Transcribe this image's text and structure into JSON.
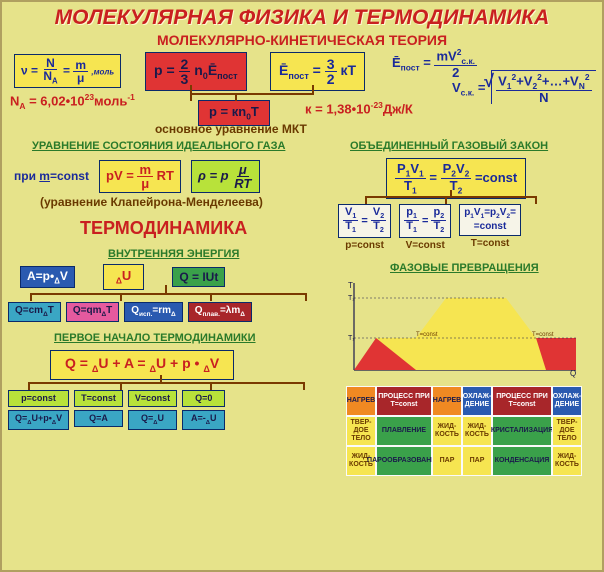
{
  "colors": {
    "bg": "#e6e38a",
    "red": "#c92020",
    "blue": "#1a2a9a",
    "brown": "#6a3a00",
    "green_h": "#2a7a2a",
    "box_yellow": "#f6e551",
    "box_red": "#e03434",
    "box_lime": "#b8e23a",
    "box_cyan": "#3aa6c4",
    "box_blue": "#2a5ab0",
    "box_green": "#3aa14a",
    "box_orange": "#f08922",
    "box_darkred": "#a8262a",
    "box_pink": "#e55a9e",
    "box_white": "#f6f4e8",
    "ink_dark": "#1a1a4a",
    "ink_white": "#ffffff"
  },
  "title": "МОЛЕКУЛЯРНАЯ ФИЗИКА И ТЕРМОДИНАМИКА",
  "subtitle": "МОЛЕКУЛЯРНО-КИНЕТИЧЕСКАЯ ТЕОРИЯ",
  "mkt": {
    "nu": "ν = N/Nₐ = m/μ ,моль",
    "p23": "p = ⅔ n₀Ēпост",
    "e32": "Ēпост = 3/2 кТ",
    "emv": "Ēпост = mV²с.к./2",
    "vsk": "Vс.к. = √((V₁²+V₂²+…+Vₙ²)/N)",
    "na": "Nₐ = 6,02•10²³моль⁻¹",
    "pknt": "p = кn₀T",
    "k": "к = 1,38•10⁻²³Дж/К",
    "mkt_note": "основное уравнение МКТ"
  },
  "ideal_gas": {
    "header": "УРАВНЕНИЕ СОСТОЯНИЯ ИДЕАЛЬНОГО ГАЗА",
    "cond": "при m=const",
    "pv": "pV = m/μ RT",
    "rho": "ρ = p μ/RT",
    "note": "(уравнение Клапейрона-Менделеева)"
  },
  "gas_law": {
    "header": "ОБЪЕДИНЕННЫЙ ГАЗОВЫЙ ЗАКОН",
    "main": "P₁V₁/T₁ = P₂V₂/T₂ = const",
    "a": "V₁/T₁ = V₂/T₂",
    "b": "p₁/T₁ = p₂/T₂",
    "c": "p₁V₁=p₂V₂= =const",
    "al": "p=const",
    "bl": "V=const",
    "cl": "T=const"
  },
  "thermo_title": "ТЕРМОДИНАМИКА",
  "internal_energy": {
    "header": "ВНУТРЕННЯЯ ЭНЕРГИЯ",
    "U": "ΔU",
    "A": "A=p•ΔV",
    "Q": "Q = IUt",
    "q1": "Q=cmΔT",
    "q2": "Q=qmΔT",
    "q3": "Qисп.=rmΔ",
    "q4": "Qплав.=λmΔ"
  },
  "first_law": {
    "header": "ПЕРВОЕ НАЧАЛО ТЕРМОДИНАМИКИ",
    "main": "Q = ΔU + A = ΔU + p•ΔV",
    "c1h": "p=const",
    "c1b": "Q=ΔU+p•ΔV",
    "c2h": "T=const",
    "c2b": "Q=A",
    "c3h": "V=const",
    "c3b": "Q=ΔU",
    "c4h": "Q=0",
    "c4b": "A=-ΔU"
  },
  "phase": {
    "header": "ФАЗОВЫЕ ПРЕВРАЩЕНИЯ",
    "row1": [
      "НАГРЕВ",
      "ПРОЦЕСС ПРИ T=const",
      "НАГРЕВ",
      "ОХЛАЖ-ДЕНИЕ",
      "ПРОЦЕСС ПРИ T=const",
      "ОХЛАЖ-ДЕНИЕ"
    ],
    "row2": [
      "ТВЕР-ДОЕ ТЕЛО",
      "ПЛАВЛЕНИЕ",
      "ЖИД-КОСТЬ",
      "ЖИД-КОСТЬ",
      "КРИСТАЛИЗАЦИЯ",
      "ТВЕР-ДОЕ ТЕЛО"
    ],
    "row3": [
      "ЖИД-КОСТЬ",
      "ПАРООБРАЗОВАНИЕ",
      "ПАР",
      "ПАР",
      "КОНДЕНСАЦИЯ",
      "ЖИД-КОСТЬ"
    ]
  }
}
